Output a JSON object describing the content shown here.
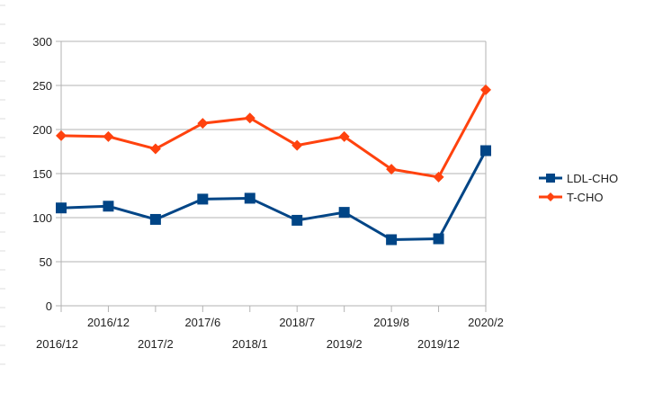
{
  "chart_data": {
    "type": "line",
    "categories": [
      "2016/12",
      "2016/12",
      "2017/2",
      "2017/6",
      "2018/1",
      "2018/7",
      "2019/2",
      "2019/8",
      "2019/12",
      "2020/2"
    ],
    "series": [
      {
        "name": "LDL-CHO",
        "color": "#004586",
        "marker": "square",
        "values": [
          111,
          113,
          98,
          121,
          122,
          97,
          106,
          75,
          76,
          176
        ]
      },
      {
        "name": "T-CHO",
        "color": "#ff420e",
        "marker": "diamond",
        "values": [
          193,
          192,
          178,
          207,
          213,
          182,
          192,
          155,
          146,
          245
        ]
      }
    ],
    "ylim": [
      0,
      300
    ],
    "yticks": [
      0,
      50,
      100,
      150,
      200,
      250,
      300
    ],
    "grid": "horizontal",
    "legend_position": "right"
  }
}
